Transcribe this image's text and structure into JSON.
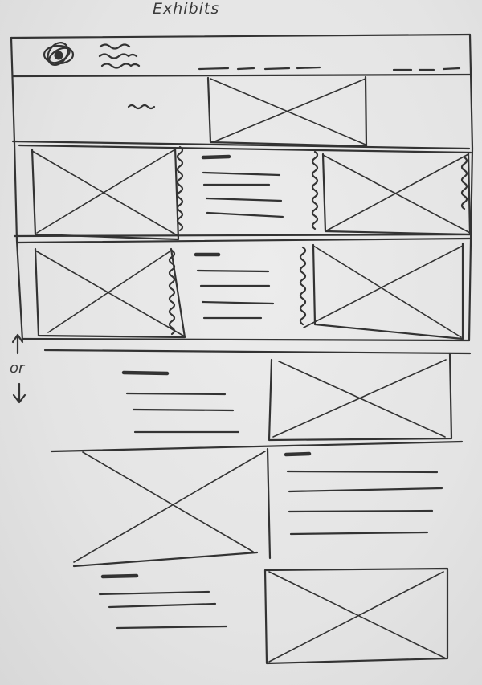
{
  "page": {
    "title": "Exhibits",
    "side_note": "or",
    "ink_color": "#333333",
    "paper_color": "#e6e6e6"
  },
  "header": {
    "logo_icon": "scribble-logo-icon",
    "nav_placeholders": 5
  }
}
